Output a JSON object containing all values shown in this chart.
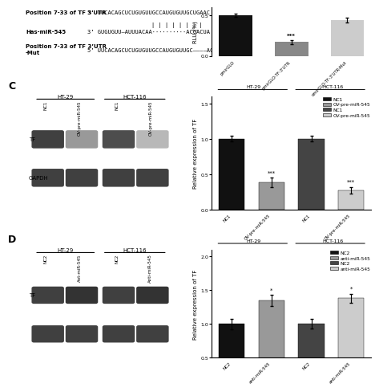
{
  "panel_C_bars": {
    "categories": [
      "NC1",
      "OV-pre-miR-545",
      "NC1",
      "OV-pre-miR-545"
    ],
    "values": [
      1.0,
      0.38,
      1.0,
      0.27
    ],
    "errors": [
      0.04,
      0.07,
      0.04,
      0.05
    ],
    "colors": [
      "#111111",
      "#999999",
      "#444444",
      "#cccccc"
    ],
    "ylabel": "Relative expression of TF",
    "ylim": [
      0,
      1.6
    ],
    "yticks": [
      0.0,
      0.5,
      1.0,
      1.5
    ],
    "group_labels": [
      "HT-29",
      "HCT-116"
    ],
    "sig_labels": [
      "***",
      "***"
    ]
  },
  "panel_D_bars": {
    "categories": [
      "NC2",
      "anti-miR-545",
      "NC2",
      "anti-miR-545"
    ],
    "values": [
      1.0,
      1.35,
      1.0,
      1.38
    ],
    "errors": [
      0.08,
      0.08,
      0.07,
      0.07
    ],
    "colors": [
      "#111111",
      "#999999",
      "#444444",
      "#cccccc"
    ],
    "ylabel": "Relative expression of TF",
    "ylim": [
      0.5,
      2.1
    ],
    "yticks": [
      0.5,
      1.0,
      1.5,
      2.0
    ],
    "group_labels": [
      "HT-29",
      "HCT-116"
    ],
    "sig_labels": [
      "*",
      "*"
    ]
  },
  "luciferase_bars": {
    "categories": [
      "pmirGLO",
      "pmirGLO-TF-3'UTR",
      "pmirGLO-TF-3'UTR-Mut"
    ],
    "values": [
      0.5,
      0.17,
      0.44
    ],
    "errors": [
      0.02,
      0.025,
      0.03
    ],
    "colors": [
      "#111111",
      "#888888",
      "#cccccc"
    ],
    "ylabel": "RLU (%)",
    "ylim": [
      0,
      0.6
    ],
    "yticks": [
      0.0,
      0.5
    ],
    "sig_label": "***"
  },
  "legend_C": {
    "labels": [
      "NC1",
      "OV-pre-miR-545",
      "NC1",
      "OV-pre-miR-545"
    ],
    "colors": [
      "#111111",
      "#999999",
      "#444444",
      "#cccccc"
    ]
  },
  "legend_D": {
    "labels": [
      "NC2",
      "anti-miR-545",
      "NC2",
      "anti-miR-545"
    ],
    "colors": [
      "#111111",
      "#999999",
      "#444444",
      "#cccccc"
    ]
  },
  "seq_line1_label": "Position 7-33 of TF 3'UTR",
  "seq_line1_seq": "5’ UUCACAGCUCUGUGUUGCCAUGUGUUGCUGAAC",
  "seq_pipes": "| | | | | | | |",
  "seq_line2_label": "Has-miR-545",
  "seq_line2_seq": "3’ GUGUGUU—AUUUACAA··········ACGACUA",
  "seq_line3_label": "Position 7-33 of TF 3’UTR",
  "seq_line3_label2": "-Mut",
  "seq_line3_seq": "5’ UUCACAGCUCUGUGUUGCCAUGUGUUGC————AC"
}
